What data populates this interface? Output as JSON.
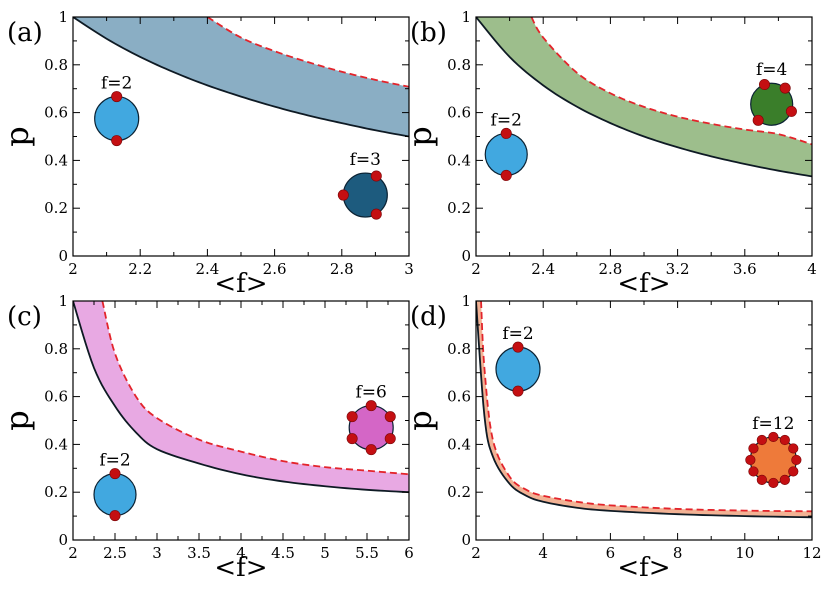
{
  "chart_data": [
    {
      "panel": "a",
      "panel_label": "(a)",
      "type": "area",
      "xlabel": "<f>",
      "ylabel": "p",
      "xlim": [
        2,
        3
      ],
      "ylim": [
        0,
        1
      ],
      "xticks": [
        "2",
        "2.2",
        "2.4",
        "2.6",
        "2.8",
        "3"
      ],
      "yticks": [
        "0",
        "0.2",
        "0.4",
        "0.6",
        "0.8",
        "1"
      ],
      "band_color": "#8aaec4",
      "series": [
        {
          "name": "lower bound (solid)",
          "style": "solid",
          "x": [
            2.0,
            2.1,
            2.2,
            2.3,
            2.4,
            2.5,
            2.6,
            2.7,
            2.8,
            2.9,
            3.0
          ],
          "y": [
            1.0,
            0.909,
            0.833,
            0.769,
            0.714,
            0.667,
            0.625,
            0.588,
            0.556,
            0.526,
            0.5
          ]
        },
        {
          "name": "upper bound (dashed)",
          "style": "dashed",
          "x": [
            2.4,
            2.5,
            2.6,
            2.7,
            2.8,
            2.9,
            3.0
          ],
          "y": [
            1.0,
            0.914,
            0.857,
            0.811,
            0.771,
            0.737,
            0.708
          ]
        }
      ],
      "insets": [
        {
          "label": "f=2",
          "x": 2.13,
          "y": 0.575,
          "color": "#41a8e0"
        },
        {
          "label": "f=3",
          "x": 2.87,
          "y": 0.255,
          "color": "#1d5b7e"
        }
      ]
    },
    {
      "panel": "b",
      "panel_label": "(b)",
      "type": "area",
      "xlabel": "<f>",
      "ylabel": "p",
      "xlim": [
        2,
        4
      ],
      "ylim": [
        0,
        1
      ],
      "xticks": [
        "2",
        "2.4",
        "2.8",
        "3.2",
        "3.6",
        "4"
      ],
      "yticks": [
        "0",
        "0.2",
        "0.4",
        "0.6",
        "0.8",
        "1"
      ],
      "band_color": "#9dbe8c",
      "series": [
        {
          "name": "lower bound (solid)",
          "style": "solid",
          "x": [
            2.0,
            2.2,
            2.4,
            2.6,
            2.8,
            3.0,
            3.2,
            3.4,
            3.6,
            3.8,
            4.0
          ],
          "y": [
            1.0,
            0.833,
            0.714,
            0.625,
            0.556,
            0.5,
            0.455,
            0.417,
            0.385,
            0.357,
            0.333
          ]
        },
        {
          "name": "upper bound (dashed)",
          "style": "dashed",
          "x": [
            2.33,
            2.4,
            2.6,
            2.8,
            3.0,
            3.2,
            3.4,
            3.6,
            3.8,
            4.0
          ],
          "y": [
            1.0,
            0.914,
            0.767,
            0.681,
            0.624,
            0.583,
            0.553,
            0.529,
            0.51,
            0.467
          ]
        }
      ],
      "insets": [
        {
          "label": "f=2",
          "x": 2.18,
          "y": 0.425,
          "color": "#41a8e0"
        },
        {
          "label": "f=4",
          "x": 3.76,
          "y": 0.635,
          "color": "#3a7e2a"
        }
      ]
    },
    {
      "panel": "c",
      "panel_label": "(c)",
      "type": "area",
      "xlabel": "<f>",
      "ylabel": "p",
      "xlim": [
        2,
        6
      ],
      "ylim": [
        0,
        1
      ],
      "xticks": [
        "2",
        "2.5",
        "3",
        "3.5",
        "4",
        "4.5",
        "5",
        "5.5",
        "6"
      ],
      "yticks": [
        "0",
        "0.2",
        "0.4",
        "0.6",
        "0.8",
        "1"
      ],
      "band_color": "#e8a9e3",
      "series": [
        {
          "name": "lower bound (solid)",
          "style": "solid",
          "x": [
            2.0,
            2.25,
            2.5,
            2.75,
            3.0,
            3.5,
            4.0,
            4.5,
            5.0,
            5.5,
            6.0
          ],
          "y": [
            1.0,
            0.72,
            0.56,
            0.45,
            0.38,
            0.32,
            0.275,
            0.245,
            0.225,
            0.21,
            0.2
          ]
        },
        {
          "name": "upper bound (dashed)",
          "style": "dashed",
          "x": [
            2.35,
            2.5,
            2.75,
            3.0,
            3.5,
            4.0,
            4.5,
            5.0,
            5.5,
            6.0
          ],
          "y": [
            1.0,
            0.78,
            0.6,
            0.51,
            0.42,
            0.37,
            0.33,
            0.305,
            0.29,
            0.275
          ]
        }
      ],
      "insets": [
        {
          "label": "f=2",
          "x": 2.5,
          "y": 0.19,
          "color": "#41a8e0"
        },
        {
          "label": "f=6",
          "x": 5.55,
          "y": 0.47,
          "color": "#d466c6"
        }
      ]
    },
    {
      "panel": "d",
      "panel_label": "(d)",
      "type": "area",
      "xlabel": "<f>",
      "ylabel": "p",
      "xlim": [
        2,
        12
      ],
      "ylim": [
        0,
        1
      ],
      "xticks": [
        "2",
        "4",
        "6",
        "8",
        "10",
        "12"
      ],
      "yticks": [
        "0",
        "0.2",
        "0.4",
        "0.6",
        "0.8",
        "1"
      ],
      "band_color": "#f2b294",
      "series": [
        {
          "name": "lower bound (solid)",
          "style": "solid",
          "x": [
            2.0,
            2.25,
            2.5,
            3.0,
            3.5,
            4.0,
            5.0,
            6.0,
            8.0,
            10.0,
            12.0
          ],
          "y": [
            1.0,
            0.52,
            0.35,
            0.235,
            0.185,
            0.16,
            0.135,
            0.122,
            0.108,
            0.1,
            0.095
          ]
        },
        {
          "name": "upper bound (dashed)",
          "style": "dashed",
          "x": [
            2.15,
            2.25,
            2.5,
            3.0,
            3.5,
            4.0,
            5.0,
            6.0,
            8.0,
            10.0,
            12.0
          ],
          "y": [
            1.0,
            0.72,
            0.42,
            0.265,
            0.21,
            0.185,
            0.16,
            0.145,
            0.13,
            0.123,
            0.12
          ]
        }
      ],
      "insets": [
        {
          "label": "f=2",
          "x": 3.25,
          "y": 0.715,
          "color": "#41a8e0"
        },
        {
          "label": "f=12",
          "x": 10.85,
          "y": 0.335,
          "color": "#ee7a3a"
        }
      ]
    }
  ],
  "colors": {
    "solid_line": "#0e1a24",
    "dashed_line": "#e3242b",
    "sticker": "#c40f12"
  }
}
